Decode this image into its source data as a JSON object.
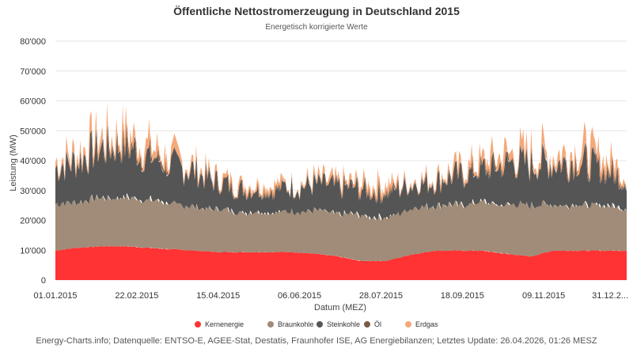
{
  "chart_data": {
    "type": "area",
    "stacked": true,
    "title": "Öffentliche Nettostromerzeugung in Deutschland 2015",
    "subtitle": "Energetisch korrigierte Werte",
    "xlabel": "Datum (MEZ)",
    "ylabel": "Leistung (MW)",
    "ylim": [
      0,
      80000
    ],
    "y_ticks": [
      "0",
      "10'000",
      "20'000",
      "30'000",
      "40'000",
      "50'000",
      "60'000",
      "70'000",
      "80'000"
    ],
    "x_range": [
      "2015-01-01",
      "2016-01-01"
    ],
    "x_ticks": [
      {
        "date": "2015-01-01",
        "label": "01.01.2015"
      },
      {
        "date": "2015-02-22",
        "label": "22.02.2015"
      },
      {
        "date": "2015-04-15",
        "label": "15.04.2015"
      },
      {
        "date": "2015-06-06",
        "label": "06.06.2015"
      },
      {
        "date": "2015-07-28",
        "label": "28.07.2015"
      },
      {
        "date": "2015-09-18",
        "label": "18.09.2015"
      },
      {
        "date": "2015-11-09",
        "label": "09.11.2015"
      },
      {
        "date": "2015-12-31",
        "label": "31.12.2..."
      }
    ],
    "grid": true,
    "legend_position": "bottom",
    "x": [
      "2015-01-01",
      "2015-01-15",
      "2015-02-01",
      "2015-02-15",
      "2015-03-01",
      "2015-03-15",
      "2015-04-01",
      "2015-04-15",
      "2015-05-01",
      "2015-05-15",
      "2015-06-01",
      "2015-06-15",
      "2015-07-01",
      "2015-07-15",
      "2015-08-01",
      "2015-08-15",
      "2015-09-01",
      "2015-09-15",
      "2015-10-01",
      "2015-10-15",
      "2015-11-01",
      "2015-11-15",
      "2015-12-01",
      "2015-12-15",
      "2015-12-31"
    ],
    "series": [
      {
        "name": "Kernenergie",
        "color": "#ff3333",
        "values": [
          10000,
          11000,
          11500,
          11500,
          11000,
          10500,
          10000,
          9500,
          9500,
          9500,
          9500,
          9000,
          8000,
          6500,
          6500,
          8500,
          10000,
          10000,
          10000,
          9000,
          8000,
          10000,
          10000,
          10000,
          10000
        ]
      },
      {
        "name": "Braunkohle",
        "color": "#a08c78",
        "values": [
          16000,
          16000,
          17000,
          17000,
          17000,
          16000,
          15000,
          15000,
          14000,
          14000,
          14000,
          15000,
          15000,
          16000,
          15000,
          16000,
          16000,
          16000,
          17000,
          17000,
          18000,
          16000,
          16000,
          16000,
          15000
        ]
      },
      {
        "name": "Steinkohle",
        "color": "#555555",
        "values": [
          12000,
          14000,
          17000,
          18000,
          15000,
          13000,
          12000,
          9000,
          8000,
          8000,
          8000,
          9000,
          9000,
          9000,
          9000,
          8000,
          8000,
          10000,
          11000,
          14000,
          14000,
          14000,
          15000,
          13000,
          10000
        ]
      },
      {
        "name": "Öl",
        "color": "#7a5c46",
        "values": [
          300,
          300,
          300,
          300,
          300,
          300,
          300,
          300,
          300,
          300,
          300,
          300,
          300,
          300,
          300,
          300,
          300,
          300,
          300,
          300,
          300,
          300,
          300,
          300,
          300
        ]
      },
      {
        "name": "Erdgas",
        "color": "#f5a878",
        "values": [
          3000,
          3500,
          4000,
          4000,
          3500,
          3000,
          2000,
          1500,
          1000,
          1000,
          1000,
          1500,
          1500,
          1500,
          1500,
          1500,
          1500,
          2000,
          2500,
          3500,
          4000,
          4000,
          4500,
          3500,
          2500
        ]
      }
    ],
    "credits": "Energy-Charts.info; Datenquelle: ENTSO-E, AGEE-Stat, Destatis, Fraunhofer ISE, AG Energiebilanzen; Letztes Update: 26.04.2026, 01:26 MESZ"
  }
}
